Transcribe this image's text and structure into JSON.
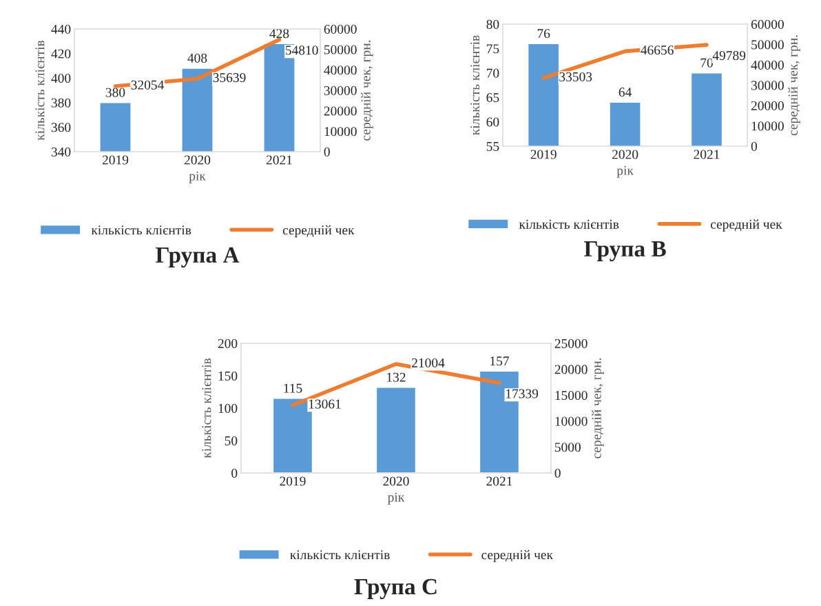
{
  "chart_data": [
    {
      "type": "bar",
      "title": "Група А",
      "xlabel": "рік",
      "ylabel": "кількість клієнтів",
      "y2label": "середній чек, грн.",
      "categories": [
        "2019",
        "2020",
        "2021"
      ],
      "series": [
        {
          "name": "кількість клієнтів",
          "color": "#5b9bd5",
          "values": [
            380,
            408,
            428
          ]
        },
        {
          "name": "середній чек",
          "type": "line",
          "axis": "y2",
          "color": "#ed7d31",
          "values": [
            32054,
            35639,
            54810
          ]
        }
      ],
      "ylim": [
        340,
        440
      ],
      "yticks": [
        340,
        360,
        380,
        400,
        420,
        440
      ],
      "y2lim": [
        0,
        60000
      ],
      "y2ticks": [
        0,
        10000,
        20000,
        30000,
        40000,
        50000,
        60000
      ],
      "data_labels": true,
      "legend": "bottom",
      "grid": false
    },
    {
      "type": "bar",
      "title": "Група В",
      "xlabel": "рік",
      "ylabel": "кількість клієнтів",
      "y2label": "середній чек, грн.",
      "categories": [
        "2019",
        "2020",
        "2021"
      ],
      "series": [
        {
          "name": "кількість клієнтів",
          "color": "#5b9bd5",
          "values": [
            76,
            64,
            70
          ]
        },
        {
          "name": "середній чек",
          "type": "line",
          "axis": "y2",
          "color": "#ed7d31",
          "values": [
            33503,
            46656,
            49789
          ]
        }
      ],
      "ylim": [
        55,
        80
      ],
      "yticks": [
        55,
        60,
        65,
        70,
        75,
        80
      ],
      "y2lim": [
        0,
        60000
      ],
      "y2ticks": [
        0,
        10000,
        20000,
        30000,
        40000,
        50000,
        60000
      ],
      "data_labels": true,
      "legend": "bottom",
      "grid": false
    },
    {
      "type": "bar",
      "title": "Група С",
      "xlabel": "рік",
      "ylabel": "кількість клієнтів",
      "y2label": "середній чек, грн.",
      "categories": [
        "2019",
        "2020",
        "2021"
      ],
      "series": [
        {
          "name": "кількість клієнтів",
          "color": "#5b9bd5",
          "values": [
            115,
            132,
            157
          ]
        },
        {
          "name": "середній чек",
          "type": "line",
          "axis": "y2",
          "color": "#ed7d31",
          "values": [
            13061,
            21004,
            17339
          ]
        }
      ],
      "ylim": [
        0,
        200
      ],
      "yticks": [
        0,
        50,
        100,
        150,
        200
      ],
      "y2lim": [
        0,
        25000
      ],
      "y2ticks": [
        0,
        5000,
        10000,
        15000,
        20000,
        25000
      ],
      "data_labels": true,
      "legend": "bottom",
      "grid": false
    }
  ]
}
